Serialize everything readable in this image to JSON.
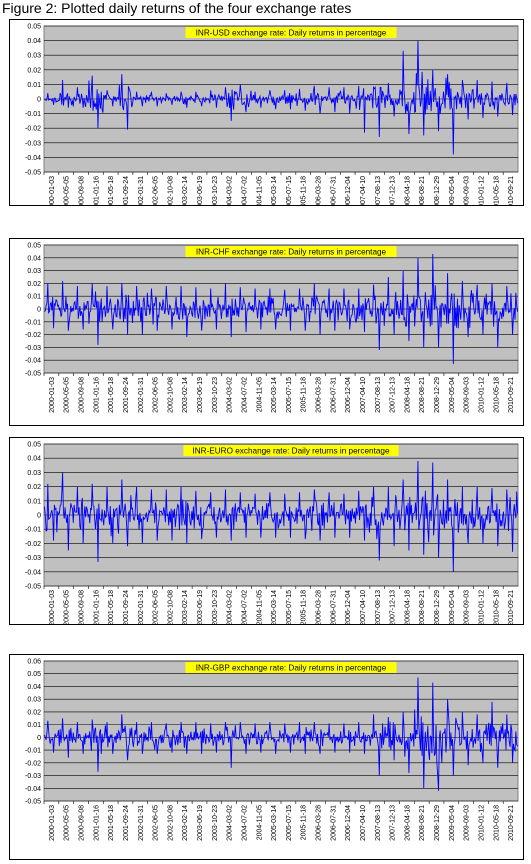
{
  "figure_title": "Figure 2: Plotted daily returns of the four exchange rates",
  "colors": {
    "plot_bg": "#c0c0c0",
    "series": "#0000ff",
    "title_bg": "#ffff00",
    "axis": "#000000"
  },
  "date_ticks": [
    "2000-01-03",
    "2000-05-05",
    "2000-09-08",
    "2001-01-16",
    "2001-05-18",
    "2001-09-24",
    "2002-01-31",
    "2002-06-05",
    "2002-10-08",
    "2003-02-14",
    "2003-06-19",
    "2003-10-23",
    "2004-03-02",
    "2004-07-02",
    "2004-11-05",
    "2005-03-14",
    "2005-07-15",
    "2005-11-18",
    "2006-03-28",
    "2006-07-31",
    "2006-12-04",
    "2007-04-10",
    "2007-08-13",
    "2007-12-13",
    "2008-04-18",
    "2008-08-21",
    "2008-12-29",
    "2009-05-04",
    "2009-09-03",
    "2010-01-12",
    "2010-05-18",
    "2010-09-21"
  ],
  "chart_data": [
    {
      "type": "line",
      "title": "INR-USD exchange rate: Daily returns in percentage",
      "ylim": [
        -0.05,
        0.05
      ],
      "yticks": [
        "0.05",
        "0.04",
        "0.03",
        "0.02",
        "0.01",
        "0",
        "-0.01",
        "-0.02",
        "-0.03",
        "-0.04",
        "-0.05"
      ],
      "grid": true,
      "legend": "none",
      "series": [
        {
          "values_per_tick_segment": "see x_categories",
          "x": [
            0,
            1,
            2,
            3,
            4,
            5,
            6,
            7,
            8,
            9,
            10,
            11,
            12,
            13,
            14,
            15,
            16,
            17,
            18,
            19,
            20,
            21,
            22,
            23,
            24,
            25,
            26,
            27,
            28,
            29,
            30,
            31
          ],
          "envelope_high": [
            0.004,
            0.013,
            0.008,
            0.016,
            0.006,
            0.017,
            0.005,
            0.005,
            0.004,
            0.005,
            0.005,
            0.006,
            0.008,
            0.01,
            0.005,
            0.006,
            0.006,
            0.007,
            0.009,
            0.008,
            0.008,
            0.009,
            0.008,
            0.011,
            0.033,
            0.04,
            0.02,
            0.017,
            0.013,
            0.013,
            0.012,
            0.011
          ],
          "envelope_low": [
            -0.004,
            -0.006,
            -0.006,
            -0.02,
            -0.005,
            -0.021,
            -0.005,
            -0.005,
            -0.004,
            -0.006,
            -0.005,
            -0.006,
            -0.015,
            -0.009,
            -0.006,
            -0.007,
            -0.007,
            -0.008,
            -0.01,
            -0.009,
            -0.01,
            -0.023,
            -0.026,
            -0.012,
            -0.024,
            -0.025,
            -0.022,
            -0.038,
            -0.014,
            -0.013,
            -0.012,
            -0.011
          ]
        }
      ]
    },
    {
      "type": "line",
      "title": "INR-CHF exchange rate: Daily returns in percentage",
      "ylim": [
        -0.05,
        0.05
      ],
      "yticks": [
        "0.05",
        "0.04",
        "0.03",
        "0.02",
        "0.01",
        "0",
        "-0.01",
        "-0.02",
        "-0.03",
        "-0.04",
        "-0.05"
      ],
      "grid": true,
      "legend": "none",
      "series": [
        {
          "x": [
            0,
            1,
            2,
            3,
            4,
            5,
            6,
            7,
            8,
            9,
            10,
            11,
            12,
            13,
            14,
            15,
            16,
            17,
            18,
            19,
            20,
            21,
            22,
            23,
            24,
            25,
            26,
            27,
            28,
            29,
            30,
            31
          ],
          "envelope_high": [
            0.02,
            0.022,
            0.018,
            0.02,
            0.018,
            0.02,
            0.018,
            0.016,
            0.018,
            0.018,
            0.017,
            0.016,
            0.02,
            0.017,
            0.016,
            0.016,
            0.015,
            0.016,
            0.02,
            0.016,
            0.016,
            0.016,
            0.019,
            0.025,
            0.03,
            0.04,
            0.043,
            0.028,
            0.022,
            0.019,
            0.02,
            0.018
          ],
          "envelope_low": [
            -0.015,
            -0.017,
            -0.016,
            -0.028,
            -0.016,
            -0.02,
            -0.02,
            -0.017,
            -0.016,
            -0.022,
            -0.017,
            -0.016,
            -0.022,
            -0.018,
            -0.016,
            -0.016,
            -0.017,
            -0.017,
            -0.02,
            -0.017,
            -0.016,
            -0.018,
            -0.032,
            -0.02,
            -0.025,
            -0.03,
            -0.03,
            -0.043,
            -0.022,
            -0.02,
            -0.03,
            -0.02
          ]
        }
      ]
    },
    {
      "type": "line",
      "title": "INR-EURO exchange rate: Daily returns in percentage",
      "ylim": [
        -0.05,
        0.05
      ],
      "yticks": [
        "0.05",
        "0.04",
        "0.03",
        "0.02",
        "0.01",
        "0",
        "-0.01",
        "-0.02",
        "-0.03",
        "-0.04",
        "-0.05"
      ],
      "grid": true,
      "legend": "none",
      "series": [
        {
          "x": [
            0,
            1,
            2,
            3,
            4,
            5,
            6,
            7,
            8,
            9,
            10,
            11,
            12,
            13,
            14,
            15,
            16,
            17,
            18,
            19,
            20,
            21,
            22,
            23,
            24,
            25,
            26,
            27,
            28,
            29,
            30,
            31
          ],
          "envelope_high": [
            0.022,
            0.03,
            0.02,
            0.022,
            0.02,
            0.025,
            0.02,
            0.018,
            0.018,
            0.02,
            0.017,
            0.016,
            0.018,
            0.016,
            0.015,
            0.016,
            0.015,
            0.016,
            0.018,
            0.016,
            0.015,
            0.017,
            0.02,
            0.02,
            0.025,
            0.038,
            0.037,
            0.025,
            0.02,
            0.02,
            0.019,
            0.018
          ],
          "envelope_low": [
            -0.018,
            -0.025,
            -0.02,
            -0.033,
            -0.02,
            -0.022,
            -0.02,
            -0.018,
            -0.018,
            -0.02,
            -0.017,
            -0.016,
            -0.018,
            -0.016,
            -0.016,
            -0.016,
            -0.016,
            -0.017,
            -0.018,
            -0.016,
            -0.016,
            -0.018,
            -0.032,
            -0.022,
            -0.025,
            -0.028,
            -0.03,
            -0.04,
            -0.02,
            -0.02,
            -0.022,
            -0.026
          ]
        }
      ]
    },
    {
      "type": "line",
      "title": "INR-GBP exchange rate: Daily returns in percentage",
      "ylim": [
        -0.05,
        0.06
      ],
      "yticks": [
        "0.06",
        "0.05",
        "0.04",
        "0.03",
        "0.02",
        "0.01",
        "0",
        "-0.01",
        "-0.02",
        "-0.03",
        "-0.04",
        "-0.05"
      ],
      "grid": true,
      "legend": "none",
      "series": [
        {
          "x": [
            0,
            1,
            2,
            3,
            4,
            5,
            6,
            7,
            8,
            9,
            10,
            11,
            12,
            13,
            14,
            15,
            16,
            17,
            18,
            19,
            20,
            21,
            22,
            23,
            24,
            25,
            26,
            27,
            28,
            29,
            30,
            31
          ],
          "envelope_high": [
            0.013,
            0.015,
            0.012,
            0.014,
            0.012,
            0.018,
            0.012,
            0.012,
            0.011,
            0.012,
            0.012,
            0.011,
            0.012,
            0.012,
            0.011,
            0.012,
            0.011,
            0.012,
            0.012,
            0.011,
            0.011,
            0.012,
            0.018,
            0.016,
            0.02,
            0.047,
            0.043,
            0.03,
            0.02,
            0.018,
            0.028,
            0.018
          ],
          "envelope_low": [
            -0.012,
            -0.016,
            -0.013,
            -0.027,
            -0.013,
            -0.018,
            -0.013,
            -0.013,
            -0.012,
            -0.013,
            -0.013,
            -0.012,
            -0.024,
            -0.013,
            -0.012,
            -0.013,
            -0.012,
            -0.013,
            -0.013,
            -0.012,
            -0.012,
            -0.013,
            -0.03,
            -0.018,
            -0.028,
            -0.04,
            -0.042,
            -0.03,
            -0.022,
            -0.02,
            -0.024,
            -0.02
          ]
        }
      ]
    }
  ]
}
